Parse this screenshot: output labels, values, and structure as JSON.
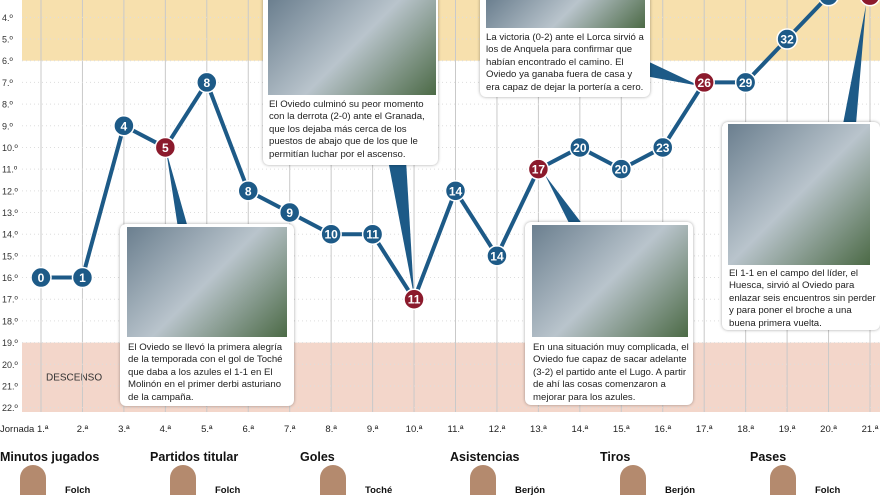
{
  "chart_data": {
    "type": "line",
    "categories": [
      "Jornada 1.ª",
      "2.ª",
      "3.ª",
      "4.ª",
      "5.ª",
      "6.ª",
      "7.ª",
      "8.ª",
      "9.ª",
      "10.ª",
      "11.ª",
      "12.ª",
      "13.ª",
      "14.ª",
      "15.ª",
      "16.ª",
      "17.ª",
      "18.ª",
      "19.ª",
      "20.ª",
      "21.ª"
    ],
    "series": [
      {
        "values": [
          16,
          16,
          9,
          10,
          7,
          12,
          13,
          14,
          14,
          17,
          12,
          15,
          11,
          10,
          11,
          10,
          7,
          7,
          5,
          3,
          3
        ],
        "points": [
          0,
          1,
          4,
          5,
          8,
          8,
          9,
          10,
          11,
          11,
          14,
          14,
          17,
          20,
          20,
          23,
          26,
          29,
          32,
          null,
          null
        ],
        "color": "#1d5a87",
        "point_colors": [
          "#1d5a87",
          "#1d5a87",
          "#1d5a87",
          "#8b1a2c",
          "#1d5a87",
          "#1d5a87",
          "#1d5a87",
          "#1d5a87",
          "#1d5a87",
          "#8b1a2c",
          "#1d5a87",
          "#1d5a87",
          "#8b1a2c",
          "#1d5a87",
          "#1d5a87",
          "#1d5a87",
          "#8b1a2c",
          "#1d5a87",
          "#1d5a87",
          "#1d5a87",
          "#8b1a2c"
        ]
      }
    ],
    "ylim": [
      22.2,
      3.2
    ],
    "yticks": [
      {
        "value": 4,
        "label": "4.º"
      },
      {
        "value": 5,
        "label": "5.º"
      },
      {
        "value": 6,
        "label": "6.º"
      },
      {
        "value": 7,
        "label": "7.º"
      },
      {
        "value": 8,
        "label": "8.º"
      },
      {
        "value": 9,
        "label": "9.º"
      },
      {
        "value": 10,
        "label": "10.º"
      },
      {
        "value": 11,
        "label": "11.º"
      },
      {
        "value": 12,
        "label": "12.º"
      },
      {
        "value": 13,
        "label": "13.º"
      },
      {
        "value": 14,
        "label": "14.º"
      },
      {
        "value": 15,
        "label": "15.º"
      },
      {
        "value": 16,
        "label": "16.º"
      },
      {
        "value": 17,
        "label": "17.º"
      },
      {
        "value": 18,
        "label": "18.º"
      },
      {
        "value": 19,
        "label": "19.º"
      },
      {
        "value": 20,
        "label": "20.º"
      },
      {
        "value": 21,
        "label": "21.º"
      },
      {
        "value": 22,
        "label": "22.º"
      }
    ],
    "bands": [
      {
        "from": 3.2,
        "to": 6,
        "color": "#f7e0ad"
      },
      {
        "from": 19,
        "to": 22.2,
        "color": "#f3d6ca",
        "label": "DESCENSO"
      }
    ],
    "annotations": [
      "El Oviedo se llevó la primera alegría de la temporada con el gol de Toché que daba a los azules el 1-1 en El Molinón en el primer derbi asturiano de la campaña.",
      "El Oviedo culminó su peor momento con la derrota (2-0) ante el Granada, que los dejaba más cerca de los puestos de abajo que de los que le permitían luchar por el ascenso.",
      "La victoria (0-2) ante el Lorca sirvió a los de Anquela para confirmar que habían encontrado el camino. El Oviedo ya ganaba fuera de casa y era capaz de dejar la portería a cero.",
      "En una situación muy complicada, el Oviedo fue capaz de sacar adelante (3-2) el partido ante el Lugo. A partir de ahí las cosas comenzaron a mejorar para los azules.",
      "El 1-1 en el campo del líder, el Huesca, sirvió al Oviedo para enlazar seis encuentros sin perder y para poner el broche a una buena primera vuelta."
    ]
  },
  "leaders": [
    {
      "category": "Minutos jugados",
      "name": "Folch"
    },
    {
      "category": "Partidos titular",
      "name": "Folch"
    },
    {
      "category": "Goles",
      "name": "Toché"
    },
    {
      "category": "Asistencias",
      "name": "Berjón"
    },
    {
      "category": "Tiros",
      "name": "Berjón"
    },
    {
      "category": "Pases",
      "name": "Folch"
    }
  ]
}
